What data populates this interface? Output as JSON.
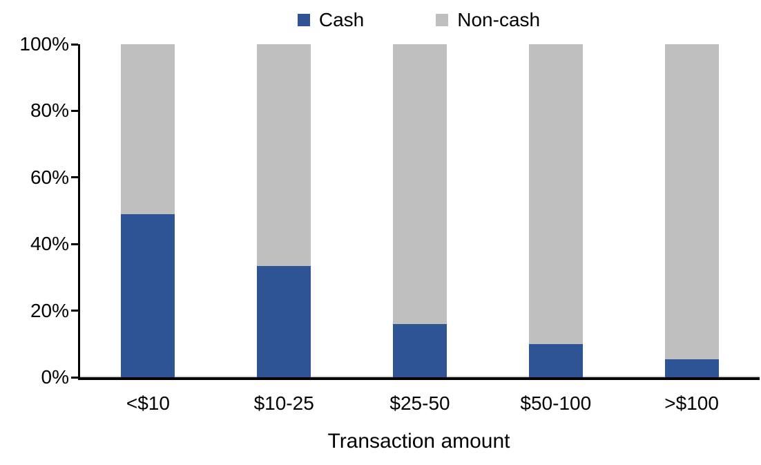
{
  "chart_data": {
    "type": "bar",
    "stacked": true,
    "title": "",
    "xlabel": "Transaction amount",
    "ylabel": "",
    "categories": [
      "<$10",
      "$10-25",
      "$25-50",
      "$50-100",
      ">$100"
    ],
    "series": [
      {
        "name": "Cash",
        "color": "#2F5496",
        "values": [
          49,
          33.5,
          16,
          10,
          5.5
        ]
      },
      {
        "name": "Non-cash",
        "color": "#BFBFBF",
        "values": [
          51,
          66.5,
          84,
          90,
          94.5
        ]
      }
    ],
    "yticks": [
      {
        "value": 0,
        "label": "0%"
      },
      {
        "value": 20,
        "label": "20%"
      },
      {
        "value": 40,
        "label": "40%"
      },
      {
        "value": 60,
        "label": "60%"
      },
      {
        "value": 80,
        "label": "80%"
      },
      {
        "value": 100,
        "label": "100%"
      }
    ],
    "ylim": [
      0,
      100
    ],
    "legend_position": "top",
    "grid": false,
    "colors": {
      "axis": "#000000",
      "text": "#000000",
      "background": "#FFFFFF"
    }
  }
}
